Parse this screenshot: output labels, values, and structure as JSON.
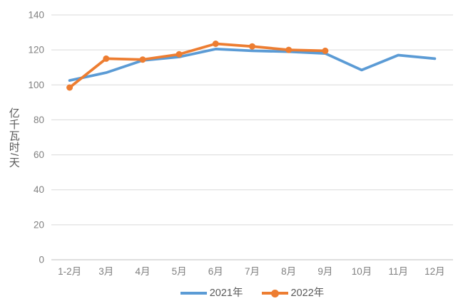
{
  "chart_data": {
    "type": "line",
    "title": "",
    "xlabel": "",
    "ylabel": "亿千瓦时/天",
    "categories": [
      "1-2月",
      "3月",
      "4月",
      "5月",
      "6月",
      "7月",
      "8月",
      "9月",
      "10月",
      "11月",
      "12月"
    ],
    "series": [
      {
        "name": "2021年",
        "color": "#5B9BD5",
        "marker": "none",
        "values": [
          102.5,
          107,
          114,
          116,
          120.5,
          119.5,
          119,
          118,
          108.5,
          117,
          115
        ]
      },
      {
        "name": "2022年",
        "color": "#ED7D31",
        "marker": "circle",
        "values": [
          98.5,
          115,
          114.5,
          117.5,
          123.5,
          122,
          120,
          119.5,
          null,
          null,
          null
        ]
      }
    ],
    "ylim": [
      0,
      140
    ],
    "yticks": [
      0,
      20,
      40,
      60,
      80,
      100,
      120,
      140
    ],
    "grid": "horizontal",
    "legend_position": "bottom-center",
    "styles": {
      "background": "#FFFFFF",
      "gridline_color": "#D9D9D9",
      "axis_line_color": "#BFBFBF",
      "tick_label_color": "#808080",
      "axis_title_color": "#595959",
      "legend_text_color": "#595959",
      "line_width": 3.75,
      "marker_radius": 4.5
    }
  }
}
